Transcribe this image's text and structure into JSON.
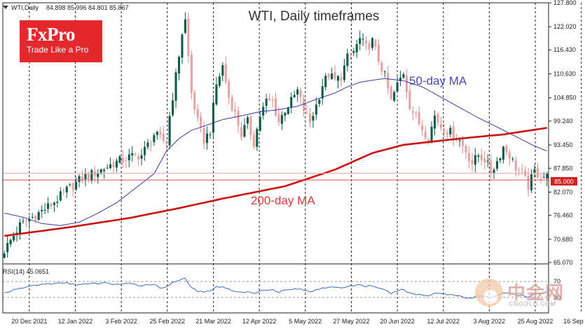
{
  "header": {
    "symbol": "WTI,Daily",
    "ohlc": "84.898 85.996 84.801 85.867",
    "title": "WTI, Daily timeframes"
  },
  "logo": {
    "brand": "FxPro",
    "tagline": "Trade Like a Pro",
    "color": "#e3282e"
  },
  "watermark": {
    "name": "中金网",
    "domain": "CNGOLD.COM"
  },
  "chart_data": [
    {
      "type": "candlestick",
      "title": "WTI, Daily timeframes",
      "y_ticks": [
        "127.800",
        "122.020",
        "116.430",
        "110.630",
        "104.850",
        "99.240",
        "93.450",
        "87.850",
        "82.070",
        "76.460",
        "70.680",
        "65.070"
      ],
      "ylim": [
        65.07,
        127.8
      ],
      "x_ticks": [
        "20 Dec 2021",
        "12 Jan 2022",
        "3 Feb 2022",
        "25 Feb 2022",
        "21 Mar 2022",
        "12 Apr 2022",
        "5 May 2022",
        "27 May 2022",
        "20 Jun 2022",
        "12 Jul 2022",
        "3 Aug 2022",
        "25 Aug 2022",
        "16 Sep 2022"
      ],
      "price_anchors": [
        [
          0,
          68.0
        ],
        [
          5,
          74.0
        ],
        [
          10,
          76.5
        ],
        [
          15,
          79.0
        ],
        [
          20,
          82.5
        ],
        [
          25,
          85.5
        ],
        [
          30,
          87.0
        ],
        [
          35,
          89.0
        ],
        [
          40,
          90.5
        ],
        [
          44,
          91.0
        ],
        [
          48,
          96.0
        ],
        [
          52,
          94.0
        ],
        [
          53,
          100.5
        ],
        [
          55,
          110.0
        ],
        [
          57,
          120.5
        ],
        [
          58,
          123.5
        ],
        [
          60,
          106.0
        ],
        [
          62,
          99.0
        ],
        [
          64,
          94.5
        ],
        [
          66,
          97.0
        ],
        [
          68,
          108.0
        ],
        [
          70,
          112.5
        ],
        [
          72,
          105.0
        ],
        [
          74,
          101.0
        ],
        [
          76,
          96.0
        ],
        [
          78,
          99.0
        ],
        [
          80,
          94.0
        ],
        [
          82,
          100.5
        ],
        [
          84,
          104.0
        ],
        [
          86,
          104.0
        ],
        [
          88,
          99.0
        ],
        [
          90,
          102.0
        ],
        [
          92,
          104.0
        ],
        [
          94,
          106.5
        ],
        [
          96,
          102.0
        ],
        [
          98,
          99.0
        ],
        [
          100,
          103.0
        ],
        [
          102,
          108.0
        ],
        [
          104,
          110.5
        ],
        [
          106,
          109.0
        ],
        [
          108,
          110.0
        ],
        [
          110,
          114.5
        ],
        [
          112,
          116.0
        ],
        [
          114,
          119.0
        ],
        [
          116,
          117.0
        ],
        [
          118,
          118.5
        ],
        [
          120,
          114.0
        ],
        [
          122,
          110.0
        ],
        [
          124,
          104.0
        ],
        [
          126,
          108.0
        ],
        [
          128,
          111.0
        ],
        [
          130,
          103.0
        ],
        [
          132,
          100.0
        ],
        [
          134,
          97.5
        ],
        [
          136,
          95.0
        ],
        [
          138,
          100.5
        ],
        [
          140,
          98.0
        ],
        [
          142,
          97.0
        ],
        [
          144,
          96.0
        ],
        [
          146,
          94.5
        ],
        [
          148,
          92.0
        ],
        [
          150,
          89.0
        ],
        [
          152,
          91.0
        ],
        [
          154,
          90.0
        ],
        [
          156,
          87.0
        ],
        [
          158,
          89.5
        ],
        [
          160,
          93.0
        ],
        [
          162,
          91.0
        ],
        [
          164,
          88.0
        ],
        [
          166,
          86.5
        ],
        [
          168,
          83.5
        ],
        [
          170,
          87.0
        ],
        [
          172,
          86.0
        ],
        [
          174,
          85.8
        ]
      ],
      "series": [
        {
          "name": "50-day MA",
          "color": "#3a3aa0",
          "points": [
            [
              0,
              77.0
            ],
            [
              6,
              76.0
            ],
            [
              12,
              74.5
            ],
            [
              18,
              74.0
            ],
            [
              24,
              74.8
            ],
            [
              30,
              77.0
            ],
            [
              36,
              79.5
            ],
            [
              42,
              83.0
            ],
            [
              48,
              86.5
            ],
            [
              52,
              92.0
            ],
            [
              56,
              95.0
            ],
            [
              60,
              97.0
            ],
            [
              64,
              98.0
            ],
            [
              70,
              99.6
            ],
            [
              76,
              100.5
            ],
            [
              82,
              101.5
            ],
            [
              88,
              102.0
            ],
            [
              94,
              102.8
            ],
            [
              100,
              104.5
            ],
            [
              106,
              106.0
            ],
            [
              110,
              107.5
            ],
            [
              114,
              108.6
            ],
            [
              118,
              109.1
            ],
            [
              122,
              109.5
            ],
            [
              128,
              109.0
            ],
            [
              134,
              107.5
            ],
            [
              140,
              105.0
            ],
            [
              146,
              102.5
            ],
            [
              152,
              100.0
            ],
            [
              158,
              97.8
            ],
            [
              164,
              95.5
            ],
            [
              170,
              93.2
            ],
            [
              174,
              92.0
            ]
          ]
        },
        {
          "name": "200-day MA",
          "color": "#cc1111",
          "points": [
            [
              0,
              71.5
            ],
            [
              20,
              73.5
            ],
            [
              40,
              75.8
            ],
            [
              56,
              78.2
            ],
            [
              70,
              80.5
            ],
            [
              90,
              83.5
            ],
            [
              106,
              87.5
            ],
            [
              118,
              91.5
            ],
            [
              128,
              93.5
            ],
            [
              140,
              94.5
            ],
            [
              150,
              95.3
            ],
            [
              160,
              96.0
            ],
            [
              174,
              97.6
            ]
          ]
        }
      ],
      "current_price_label": "85.000",
      "annotations": [
        "50-day MA",
        "200-day MA"
      ]
    },
    {
      "type": "line",
      "title": "RSI(14) 45.0651",
      "y_ticks": [
        "70",
        "30"
      ],
      "ylim": [
        0,
        100
      ],
      "series": [
        {
          "name": "RSI(14)",
          "color": "#3a6bc4",
          "points": [
            [
              0,
              42
            ],
            [
              4,
              50
            ],
            [
              8,
              58
            ],
            [
              12,
              63
            ],
            [
              16,
              65
            ],
            [
              20,
              66
            ],
            [
              24,
              62
            ],
            [
              28,
              64
            ],
            [
              32,
              66
            ],
            [
              36,
              63
            ],
            [
              40,
              64
            ],
            [
              44,
              60
            ],
            [
              48,
              64
            ],
            [
              50,
              52
            ],
            [
              52,
              58
            ],
            [
              54,
              68
            ],
            [
              56,
              74
            ],
            [
              58,
              76
            ],
            [
              60,
              54
            ],
            [
              62,
              46
            ],
            [
              64,
              42
            ],
            [
              66,
              48
            ],
            [
              68,
              56
            ],
            [
              70,
              58
            ],
            [
              72,
              50
            ],
            [
              74,
              46
            ],
            [
              76,
              42
            ],
            [
              78,
              44
            ],
            [
              80,
              40
            ],
            [
              82,
              46
            ],
            [
              84,
              50
            ],
            [
              86,
              50
            ],
            [
              88,
              44
            ],
            [
              90,
              48
            ],
            [
              92,
              50
            ],
            [
              94,
              52
            ],
            [
              96,
              48
            ],
            [
              98,
              44
            ],
            [
              100,
              50
            ],
            [
              102,
              54
            ],
            [
              104,
              56
            ],
            [
              106,
              54
            ],
            [
              108,
              54
            ],
            [
              110,
              58
            ],
            [
              112,
              60
            ],
            [
              114,
              62
            ],
            [
              116,
              58
            ],
            [
              118,
              60
            ],
            [
              120,
              52
            ],
            [
              122,
              48
            ],
            [
              124,
              40
            ],
            [
              126,
              46
            ],
            [
              128,
              50
            ],
            [
              130,
              40
            ],
            [
              132,
              38
            ],
            [
              134,
              36
            ],
            [
              136,
              34
            ],
            [
              138,
              42
            ],
            [
              140,
              40
            ],
            [
              142,
              38
            ],
            [
              144,
              36
            ],
            [
              146,
              34
            ],
            [
              148,
              30
            ],
            [
              150,
              28
            ],
            [
              152,
              34
            ],
            [
              154,
              32
            ],
            [
              156,
              30
            ],
            [
              158,
              36
            ],
            [
              160,
              42
            ],
            [
              162,
              40
            ],
            [
              164,
              36
            ],
            [
              166,
              34
            ],
            [
              168,
              30
            ],
            [
              170,
              38
            ],
            [
              172,
              40
            ],
            [
              174,
              45
            ]
          ]
        }
      ]
    }
  ]
}
